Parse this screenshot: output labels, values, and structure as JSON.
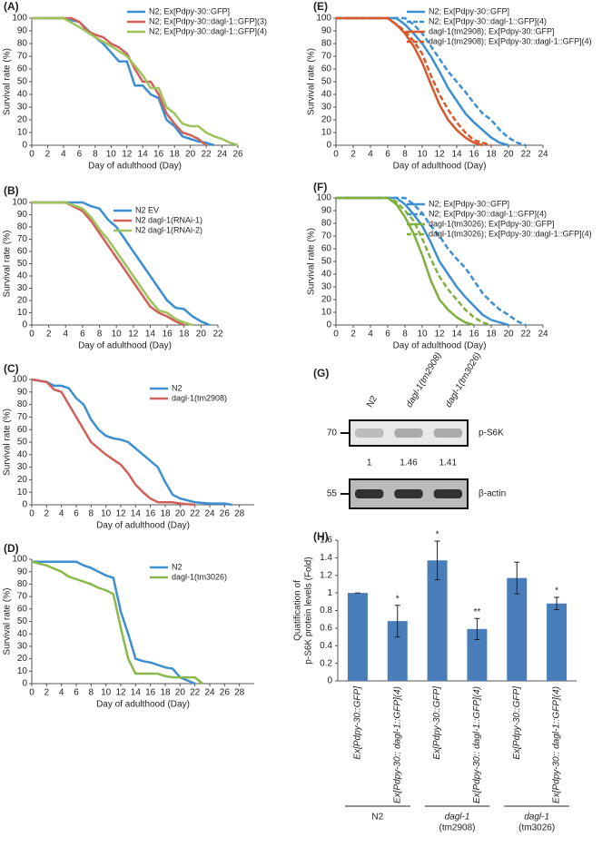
{
  "chart_data": [
    {
      "type": "line",
      "panel": "(A)",
      "xlabel": "Day of adulthood (Day)",
      "ylabel": "Survival rate (%)",
      "legend": "upper right",
      "xlim": [
        0,
        26
      ],
      "xticks": [
        0,
        2,
        4,
        6,
        8,
        10,
        12,
        14,
        16,
        18,
        20,
        22,
        24,
        26
      ],
      "ylim": [
        0,
        100
      ],
      "yticks": [
        0,
        10,
        20,
        30,
        40,
        50,
        60,
        70,
        80,
        90,
        100
      ],
      "series": [
        {
          "name": "N2; Ex[Pdpy-30::GFP]",
          "color": "#3d8fd1",
          "x": [
            0,
            4,
            6,
            8,
            9,
            10,
            11,
            12,
            13,
            14,
            15,
            16,
            17,
            18,
            19,
            20,
            21,
            22,
            23
          ],
          "values": [
            100,
            100,
            97,
            85,
            80,
            73,
            66,
            66,
            47,
            47,
            40,
            37,
            20,
            15,
            7,
            5,
            3,
            2,
            0
          ]
        },
        {
          "name": "N2; Ex[Pdpy-30::dagl-1::GFP](3)",
          "color": "#d0605a",
          "x": [
            0,
            5,
            6,
            7,
            8,
            9,
            10,
            11,
            12,
            13,
            14,
            15,
            16,
            17,
            18,
            19,
            20,
            21,
            22
          ],
          "values": [
            100,
            100,
            97,
            90,
            87,
            85,
            80,
            77,
            72,
            60,
            50,
            50,
            40,
            25,
            17,
            10,
            8,
            5,
            0
          ]
        },
        {
          "name": "N2; Ex[Pdpy-30::dagl-1::GFP](4)",
          "color": "#9dc35a",
          "x": [
            0,
            4,
            6,
            8,
            10,
            12,
            14,
            15,
            16,
            17,
            18,
            19,
            20,
            21,
            22,
            23,
            24,
            25,
            26
          ],
          "values": [
            100,
            100,
            93,
            85,
            78,
            70,
            55,
            45,
            45,
            30,
            25,
            17,
            15,
            15,
            10,
            7,
            5,
            2,
            0
          ]
        }
      ]
    },
    {
      "type": "line",
      "panel": "(B)",
      "xlabel": "Day of adulthood (Day)",
      "ylabel": "Survival rate (%)",
      "legend": "upper right",
      "xlim": [
        0,
        22
      ],
      "xticks": [
        0,
        2,
        4,
        6,
        8,
        10,
        12,
        14,
        16,
        18,
        20,
        22
      ],
      "ylim": [
        0,
        100
      ],
      "yticks": [
        0,
        10,
        20,
        30,
        40,
        50,
        60,
        70,
        80,
        90,
        100
      ],
      "series": [
        {
          "name": "N2 EV",
          "color": "#3d8fd1",
          "x": [
            0,
            6,
            7,
            8,
            9,
            10,
            11,
            12,
            13,
            14,
            15,
            16,
            17,
            18,
            19,
            20,
            21
          ],
          "values": [
            100,
            100,
            97,
            95,
            86,
            80,
            70,
            60,
            50,
            40,
            30,
            20,
            14,
            13,
            7,
            3,
            0
          ]
        },
        {
          "name": "N2 dagl-1(RNAi-1)",
          "color": "#d0605a",
          "x": [
            0,
            4,
            6,
            7,
            8,
            9,
            10,
            11,
            12,
            13,
            14,
            15,
            16,
            17,
            18
          ],
          "values": [
            100,
            100,
            93,
            85,
            75,
            65,
            55,
            45,
            35,
            25,
            15,
            10,
            7,
            3,
            0
          ]
        },
        {
          "name": "N2 dagl-1(RNAi-2)",
          "color": "#9dc35a",
          "x": [
            0,
            4,
            6,
            7,
            8,
            9,
            10,
            11,
            12,
            13,
            14,
            15,
            16,
            17,
            18,
            19
          ],
          "values": [
            100,
            100,
            95,
            88,
            78,
            70,
            60,
            50,
            40,
            30,
            20,
            12,
            10,
            5,
            2,
            0
          ]
        }
      ]
    },
    {
      "type": "line",
      "panel": "(C)",
      "xlabel": "Day of adulthood (Day)",
      "ylabel": "Survival rate (%)",
      "legend": "upper right",
      "xlim": [
        0,
        30
      ],
      "xticks": [
        0,
        2,
        4,
        6,
        8,
        10,
        12,
        14,
        16,
        18,
        20,
        22,
        24,
        26,
        28
      ],
      "ylim": [
        0,
        100
      ],
      "yticks": [
        0,
        10,
        20,
        30,
        40,
        50,
        60,
        70,
        80,
        90,
        100
      ],
      "series": [
        {
          "name": "N2",
          "color": "#3d8fd1",
          "x": [
            0,
            2,
            3,
            4,
            5,
            6,
            7,
            8,
            9,
            10,
            11,
            12,
            13,
            14,
            15,
            16,
            17,
            18,
            19,
            20,
            22,
            24,
            26,
            27
          ],
          "values": [
            100,
            98,
            95,
            95,
            93,
            85,
            80,
            68,
            60,
            55,
            53,
            52,
            50,
            45,
            40,
            35,
            30,
            18,
            8,
            5,
            2,
            1,
            1,
            0
          ]
        },
        {
          "name": "dagl-1(tm2908)",
          "color": "#d0605a",
          "x": [
            0,
            2,
            3,
            4,
            5,
            6,
            7,
            8,
            9,
            10,
            11,
            12,
            13,
            14,
            15,
            16,
            17,
            18,
            19,
            20,
            22
          ],
          "values": [
            100,
            98,
            92,
            90,
            80,
            70,
            60,
            50,
            45,
            40,
            36,
            32,
            25,
            16,
            10,
            5,
            2,
            2,
            2,
            1,
            0
          ]
        }
      ]
    },
    {
      "type": "line",
      "panel": "(D)",
      "xlabel": "Day of adulthood (Day)",
      "ylabel": "Survival rate (%)",
      "legend": "upper right",
      "xlim": [
        0,
        30
      ],
      "xticks": [
        0,
        2,
        4,
        6,
        8,
        10,
        12,
        14,
        16,
        18,
        20,
        22,
        24,
        26,
        28
      ],
      "ylim": [
        0,
        100
      ],
      "yticks": [
        0,
        10,
        20,
        30,
        40,
        50,
        60,
        70,
        80,
        90,
        100
      ],
      "series": [
        {
          "name": "N2",
          "color": "#3d8fd1",
          "x": [
            0,
            2,
            4,
            5,
            6,
            7,
            8,
            9,
            10,
            11,
            12,
            13,
            14,
            15,
            16,
            17,
            18,
            19,
            20,
            22
          ],
          "values": [
            98,
            98,
            98,
            98,
            98,
            95,
            93,
            90,
            87,
            85,
            58,
            40,
            20,
            18,
            17,
            15,
            13,
            12,
            5,
            0
          ]
        },
        {
          "name": "dagl-1(tm3026)",
          "color": "#8ab84a",
          "x": [
            0,
            2,
            4,
            5,
            6,
            7,
            8,
            9,
            10,
            11,
            12,
            13,
            14,
            15,
            16,
            17,
            18,
            19,
            20,
            21,
            22,
            23
          ],
          "values": [
            98,
            95,
            90,
            86,
            84,
            82,
            80,
            77,
            75,
            72,
            45,
            20,
            8,
            8,
            8,
            8,
            6,
            5,
            5,
            5,
            5,
            0
          ]
        }
      ]
    },
    {
      "type": "line",
      "panel": "(E)",
      "xlabel": "Day of adulthood (Day)",
      "ylabel": "Survival rate (%)",
      "legend": "upper right",
      "xlim": [
        0,
        24
      ],
      "xticks": [
        0,
        2,
        4,
        6,
        8,
        10,
        12,
        14,
        16,
        18,
        20,
        22,
        24
      ],
      "ylim": [
        0,
        100
      ],
      "yticks": [
        0,
        10,
        20,
        30,
        40,
        50,
        60,
        70,
        80,
        90,
        100
      ],
      "series": [
        {
          "name": "N2; Ex[Pdpy-30::GFP]",
          "color": "#3d8fd1",
          "dash": false,
          "x": [
            0,
            7,
            8,
            9,
            10,
            11,
            12,
            13,
            14,
            15,
            16,
            17,
            18,
            19,
            20
          ],
          "values": [
            100,
            100,
            95,
            88,
            80,
            70,
            58,
            45,
            35,
            25,
            18,
            12,
            6,
            2,
            0
          ]
        },
        {
          "name": "N2; Ex[Pdpy-30::dagl-1::GFP](4)",
          "color": "#3d8fd1",
          "dash": true,
          "x": [
            0,
            7,
            8,
            9,
            10,
            11,
            12,
            13,
            14,
            15,
            16,
            17,
            18,
            19,
            20,
            21,
            22
          ],
          "values": [
            100,
            100,
            100,
            95,
            88,
            78,
            68,
            58,
            50,
            42,
            33,
            25,
            20,
            12,
            6,
            2,
            0
          ]
        },
        {
          "name": "dagl-1(tm2908); Ex[Pdpy-30::GFP]",
          "color": "#d9582a",
          "dash": false,
          "x": [
            0,
            6,
            7,
            8,
            9,
            10,
            11,
            12,
            13,
            14,
            15,
            16,
            17
          ],
          "values": [
            100,
            100,
            95,
            88,
            78,
            65,
            48,
            32,
            20,
            12,
            6,
            2,
            0
          ]
        },
        {
          "name": "dagl-1(tm2908); Ex[Pdpy-30::dagl-1::GFP](4)",
          "color": "#d9582a",
          "dash": true,
          "x": [
            0,
            6,
            7,
            8,
            9,
            10,
            11,
            12,
            13,
            14,
            15,
            16,
            17,
            18
          ],
          "values": [
            100,
            100,
            95,
            90,
            82,
            72,
            55,
            40,
            28,
            18,
            10,
            4,
            2,
            0
          ]
        }
      ]
    },
    {
      "type": "line",
      "panel": "(F)",
      "xlabel": "Day of adulthood (Day)",
      "ylabel": "Survival rate (%)",
      "legend": "upper right",
      "xlim": [
        0,
        24
      ],
      "xticks": [
        0,
        2,
        4,
        6,
        8,
        10,
        12,
        14,
        16,
        18,
        20,
        22,
        24
      ],
      "ylim": [
        0,
        100
      ],
      "yticks": [
        0,
        10,
        20,
        30,
        40,
        50,
        60,
        70,
        80,
        90,
        100
      ],
      "series": [
        {
          "name": "N2; Ex[Pdpy-30::GFP]",
          "color": "#3d8fd1",
          "dash": false,
          "x": [
            0,
            7,
            8,
            9,
            10,
            11,
            12,
            13,
            14,
            15,
            16,
            17,
            18,
            19,
            20
          ],
          "values": [
            100,
            100,
            95,
            87,
            78,
            65,
            50,
            40,
            30,
            22,
            15,
            8,
            4,
            2,
            0
          ]
        },
        {
          "name": "N2; Ex[Pdpy-30::dagl-1::GFP](4)",
          "color": "#3d8fd1",
          "dash": true,
          "x": [
            0,
            7,
            8,
            9,
            10,
            11,
            12,
            13,
            14,
            15,
            16,
            17,
            18,
            19,
            20,
            21,
            22
          ],
          "values": [
            100,
            100,
            100,
            95,
            88,
            78,
            70,
            60,
            52,
            45,
            35,
            25,
            18,
            12,
            8,
            3,
            0
          ]
        },
        {
          "name": "dagl-1(tm3026); Ex[Pdpy-30::GFP]",
          "color": "#7fb03e",
          "dash": false,
          "x": [
            0,
            6,
            7,
            8,
            9,
            10,
            11,
            12,
            13,
            14,
            15,
            16
          ],
          "values": [
            100,
            100,
            95,
            85,
            72,
            55,
            35,
            20,
            12,
            6,
            2,
            0
          ]
        },
        {
          "name": "dagl-1(tm3026); Ex[Pdpy-30::dagl-1::GFP](4)",
          "color": "#7fb03e",
          "dash": true,
          "x": [
            0,
            6,
            7,
            8,
            9,
            10,
            11,
            12,
            13,
            14,
            15,
            16,
            17,
            18
          ],
          "values": [
            100,
            100,
            97,
            90,
            82,
            68,
            52,
            38,
            28,
            20,
            12,
            6,
            2,
            0
          ]
        }
      ]
    },
    {
      "type": "blot",
      "panel": "(G)",
      "lanes": [
        "N2",
        "dagl-1(tm2908)",
        "dagl-1(tm3026)"
      ],
      "markers": [
        70,
        55
      ],
      "bands": [
        "p-S6K",
        "β-actin"
      ],
      "quantification": [
        1,
        1.46,
        1.41
      ]
    },
    {
      "type": "bar",
      "panel": "(H)",
      "ylabel": [
        "Quatification of",
        "p-S6K protein levels (Fold)"
      ],
      "color": "#4a7ebb",
      "categories": [
        "Ex[Pdpy-30::GFP]",
        "Ex[Pdpy-30:: dagl-1::GFP](4)",
        "Ex[Pdpy-30::GFP]",
        "Ex[Pdpy-30:: dagl-1::GFP](4)",
        "Ex[Pdpy-30::GFP]",
        "Ex[Pdpy-30:: dagl-1::GFP](4)"
      ],
      "values": [
        1.0,
        0.68,
        1.37,
        0.59,
        1.17,
        0.88
      ],
      "errors": [
        0,
        0.18,
        0.22,
        0.12,
        0.18,
        0.07
      ],
      "annotations": [
        {
          "index": 1,
          "text": "*"
        },
        {
          "index": 2,
          "text": "*"
        },
        {
          "index": 3,
          "text": "**"
        },
        {
          "index": 5,
          "text": "*"
        }
      ],
      "groups": [
        {
          "members": [
            0,
            1
          ],
          "label": [
            "N2"
          ]
        },
        {
          "members": [
            2,
            3
          ],
          "label": [
            "dagl-1",
            "(tm2908)"
          ]
        },
        {
          "members": [
            4,
            5
          ],
          "label": [
            "dagl-1",
            "(tm3026)"
          ]
        }
      ],
      "ylim": [
        0,
        1.6
      ],
      "yticks": [
        0,
        0.2,
        0.4,
        0.6,
        0.8,
        1,
        1.2,
        1.4,
        1.6
      ]
    }
  ]
}
